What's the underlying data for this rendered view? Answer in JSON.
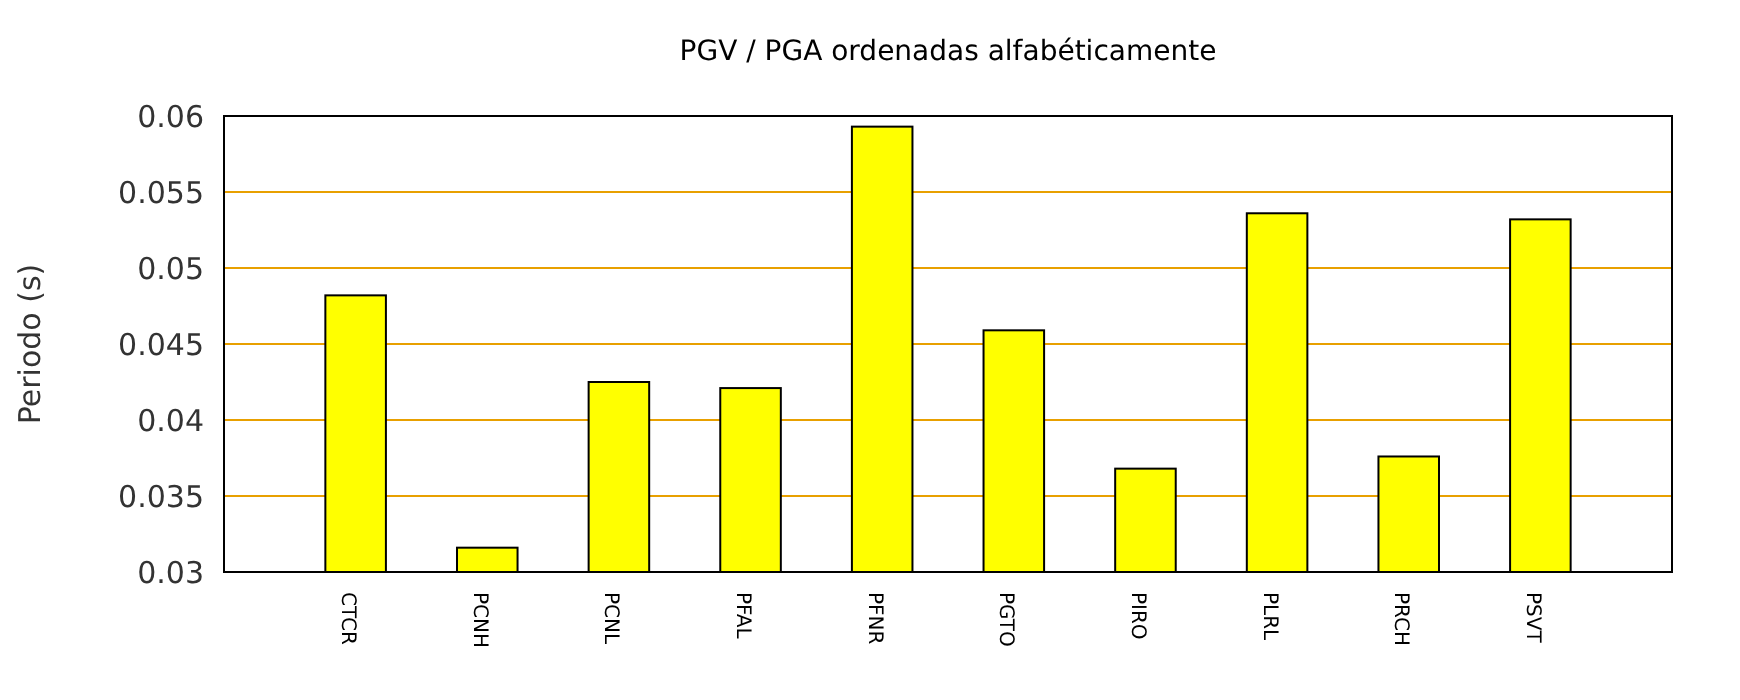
{
  "chart_data": {
    "type": "bar",
    "title": "PGV / PGA ordenadas alfabéticamente",
    "ylabel": "Periodo (s)",
    "categories": [
      "CTCR",
      "PCNH",
      "PCNL",
      "PFAL",
      "PFNR",
      "PGTO",
      "PIRO",
      "PLRL",
      "PRCH",
      "PSVT"
    ],
    "values": [
      0.0482,
      0.0316,
      0.0425,
      0.0421,
      0.0593,
      0.0459,
      0.0368,
      0.0536,
      0.0376,
      0.0532
    ],
    "color": "#ffff00",
    "ylim": [
      0.03,
      0.06
    ],
    "yticks": [
      0.03,
      0.035,
      0.04,
      0.045,
      0.05,
      0.055,
      0.06
    ],
    "grid": "y"
  }
}
